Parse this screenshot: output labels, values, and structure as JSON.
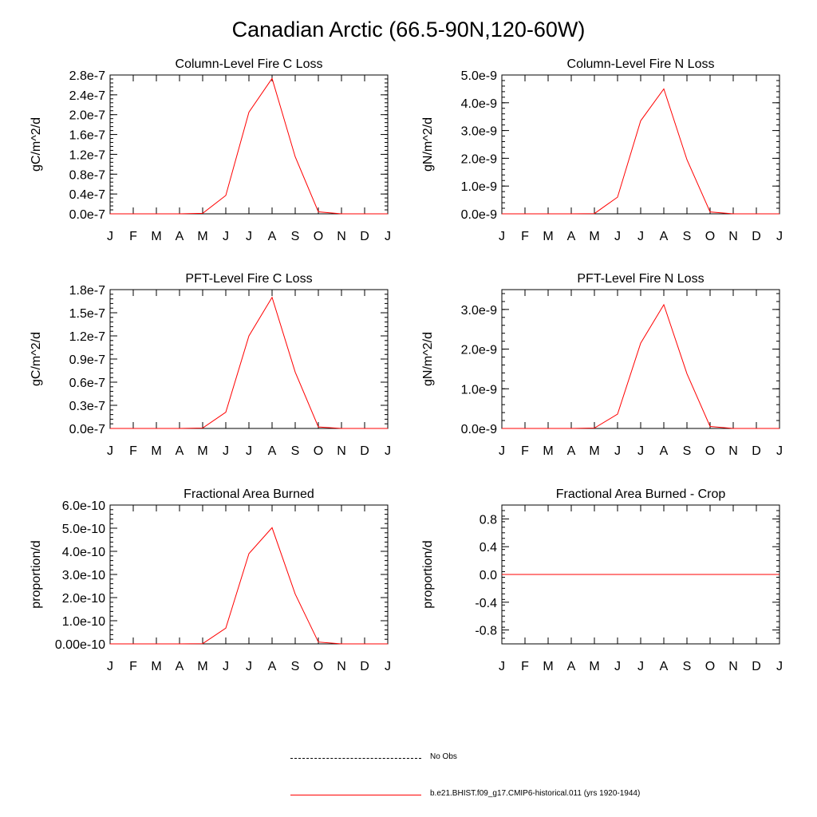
{
  "title": "Canadian Arctic (66.5-90N,120-60W)",
  "legend": [
    {
      "label": "No Obs",
      "style": "dashed",
      "color": "#000000"
    },
    {
      "label": "b.e21.BHIST.f09_g17.CMIP6-historical.011 (yrs 1920-1944)",
      "style": "solid",
      "color": "#ff0000"
    }
  ],
  "chart_data": [
    {
      "type": "line",
      "title": "Column-Level Fire C Loss",
      "ylabel": "gC/m^2/d",
      "categories": [
        "J",
        "F",
        "M",
        "A",
        "M",
        "J",
        "J",
        "A",
        "S",
        "O",
        "N",
        "D",
        "J"
      ],
      "ylim": [
        0,
        2.8e-07
      ],
      "yticks": [
        0,
        4e-08,
        8e-08,
        1.2e-07,
        1.6e-07,
        2e-07,
        2.4e-07,
        2.8e-07
      ],
      "ytick_labels": [
        "0.0e-7",
        "0.4e-7",
        "0.8e-7",
        "1.2e-7",
        "1.6e-7",
        "2.0e-7",
        "2.4e-7",
        "2.8e-7"
      ],
      "series": [
        {
          "color": "#ff0000",
          "values": [
            0,
            0,
            0,
            0,
            1e-09,
            3.7e-08,
            2.05e-07,
            2.73e-07,
            1.15e-07,
            4e-09,
            0,
            0,
            0
          ]
        }
      ]
    },
    {
      "type": "line",
      "title": "Column-Level Fire N Loss",
      "ylabel": "gN/m^2/d",
      "categories": [
        "J",
        "F",
        "M",
        "A",
        "M",
        "J",
        "J",
        "A",
        "S",
        "O",
        "N",
        "D",
        "J"
      ],
      "ylim": [
        0,
        5e-09
      ],
      "yticks": [
        0,
        1e-09,
        2e-09,
        3e-09,
        4e-09,
        5e-09
      ],
      "ytick_labels": [
        "0.0e-9",
        "1.0e-9",
        "2.0e-9",
        "3.0e-9",
        "4.0e-9",
        "5.0e-9"
      ],
      "series": [
        {
          "color": "#ff0000",
          "values": [
            0,
            0,
            0,
            0,
            1e-11,
            6e-10,
            3.35e-09,
            4.5e-09,
            1.95e-09,
            7e-11,
            0,
            0,
            0
          ]
        }
      ]
    },
    {
      "type": "line",
      "title": "PFT-Level Fire C Loss",
      "ylabel": "gC/m^2/d",
      "categories": [
        "J",
        "F",
        "M",
        "A",
        "M",
        "J",
        "J",
        "A",
        "S",
        "O",
        "N",
        "D",
        "J"
      ],
      "ylim": [
        0,
        1.8e-07
      ],
      "yticks": [
        0,
        3e-08,
        6e-08,
        9e-08,
        1.2e-07,
        1.5e-07,
        1.8e-07
      ],
      "ytick_labels": [
        "0.0e-7",
        "0.3e-7",
        "0.6e-7",
        "0.9e-7",
        "1.2e-7",
        "1.5e-7",
        "1.8e-7"
      ],
      "series": [
        {
          "color": "#ff0000",
          "values": [
            0,
            0,
            0,
            0,
            5e-10,
            2.1e-08,
            1.2e-07,
            1.7e-07,
            7.3e-08,
            2e-09,
            0,
            0,
            0
          ]
        }
      ]
    },
    {
      "type": "line",
      "title": "PFT-Level Fire N Loss",
      "ylabel": "gN/m^2/d",
      "categories": [
        "J",
        "F",
        "M",
        "A",
        "M",
        "J",
        "J",
        "A",
        "S",
        "O",
        "N",
        "D",
        "J"
      ],
      "ylim": [
        0,
        3.5e-09
      ],
      "yticks": [
        0,
        1e-09,
        2e-09,
        3e-09
      ],
      "ytick_labels": [
        "0.0e-9",
        "1.0e-9",
        "2.0e-9",
        "3.0e-9"
      ],
      "series": [
        {
          "color": "#ff0000",
          "values": [
            0,
            0,
            0,
            0,
            1e-11,
            3.6e-10,
            2.15e-09,
            3.12e-09,
            1.38e-09,
            5e-11,
            0,
            0,
            0
          ]
        }
      ]
    },
    {
      "type": "line",
      "title": "Fractional Area Burned",
      "ylabel": "proportion/d",
      "categories": [
        "J",
        "F",
        "M",
        "A",
        "M",
        "J",
        "J",
        "A",
        "S",
        "O",
        "N",
        "D",
        "J"
      ],
      "ylim": [
        0,
        6e-10
      ],
      "yticks": [
        0,
        1e-10,
        2e-10,
        3e-10,
        4e-10,
        5e-10,
        6e-10
      ],
      "ytick_labels": [
        "0.00e-10",
        "1.0e-10",
        "2.0e-10",
        "3.0e-10",
        "4.0e-10",
        "5.0e-10",
        "6.0e-10"
      ],
      "series": [
        {
          "color": "#ff0000",
          "values": [
            0,
            0,
            0,
            0,
            1e-12,
            6.8e-11,
            3.9e-10,
            5.02e-10,
            2.15e-10,
            8e-12,
            0,
            0,
            0
          ]
        }
      ]
    },
    {
      "type": "line",
      "title": "Fractional Area Burned - Crop",
      "ylabel": "proportion/d",
      "categories": [
        "J",
        "F",
        "M",
        "A",
        "M",
        "J",
        "J",
        "A",
        "S",
        "O",
        "N",
        "D",
        "J"
      ],
      "ylim": [
        -1.0,
        1.0
      ],
      "yticks": [
        -0.8,
        -0.4,
        0.0,
        0.4,
        0.8
      ],
      "ytick_labels": [
        "-0.8",
        "-0.4",
        "0.0",
        "0.4",
        "0.8"
      ],
      "series": [
        {
          "color": "#ff0000",
          "values": [
            0,
            0,
            0,
            0,
            0,
            0,
            0,
            0,
            0,
            0,
            0,
            0,
            0
          ]
        }
      ]
    }
  ]
}
